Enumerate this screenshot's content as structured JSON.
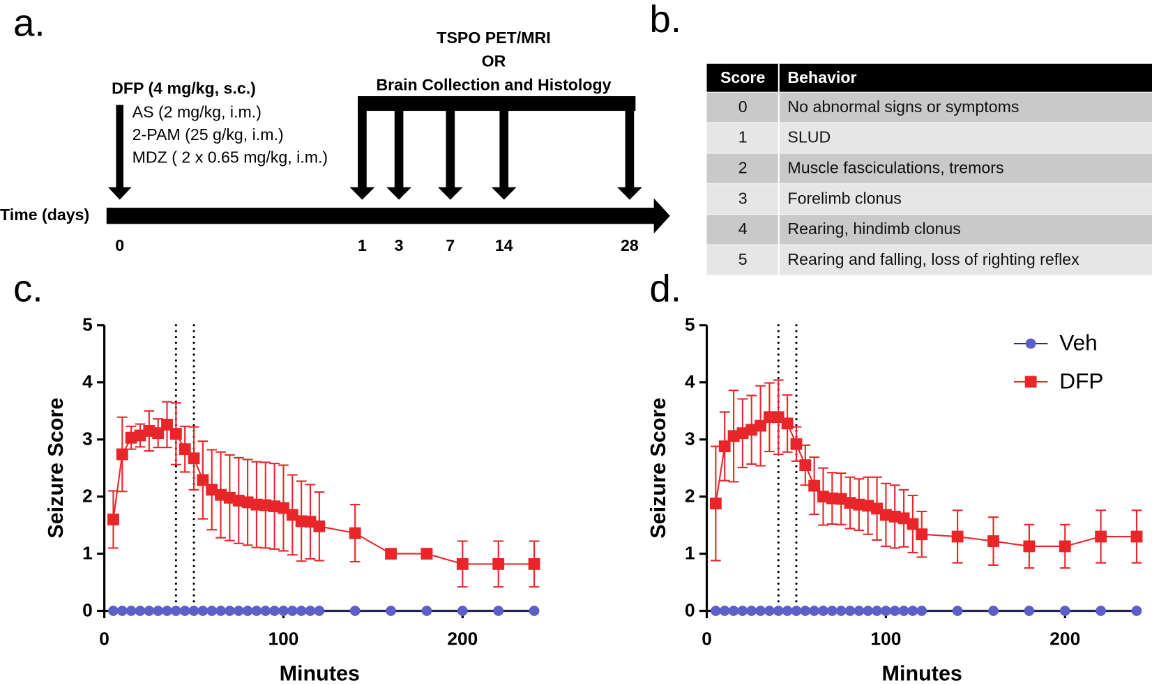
{
  "panel_labels": [
    "a.",
    "b.",
    "c.",
    "d."
  ],
  "timeline": {
    "header_lines": [
      "TSPO PET/MRI",
      "OR",
      "Brain Collection and Histology"
    ],
    "dose_title": "DFP (4 mg/kg, s.c.)",
    "treatments": [
      "AS (2 mg/kg, i.m.)",
      "2-PAM (25 g/kg, i.m.)",
      "MDZ ( 2 x 0.65 mg/kg, i.m.)"
    ],
    "axis_label": "Time (days)",
    "days": [
      0,
      1,
      3,
      7,
      14,
      28
    ]
  },
  "table": {
    "header": [
      "Score",
      "Behavior"
    ],
    "rows": [
      [
        "0",
        "No abnormal signs or symptoms"
      ],
      [
        "1",
        "SLUD"
      ],
      [
        "2",
        "Muscle fasciculations, tremors"
      ],
      [
        "3",
        "Forelimb clonus"
      ],
      [
        "4",
        "Rearing, hindimb clonus"
      ],
      [
        "5",
        "Rearing and falling, loss of righting reflex"
      ]
    ]
  },
  "chart_data": [
    {
      "type": "line",
      "xlabel": "Minutes",
      "ylabel": "Seizure Score",
      "x": [
        5,
        10,
        15,
        20,
        25,
        30,
        35,
        40,
        45,
        50,
        55,
        60,
        65,
        70,
        75,
        80,
        85,
        90,
        95,
        100,
        105,
        110,
        115,
        120,
        140,
        160,
        180,
        200,
        220,
        240
      ],
      "series": [
        {
          "color": "#5b5fc7",
          "marker": "circle",
          "values": [
            0,
            0,
            0,
            0,
            0,
            0,
            0,
            0,
            0,
            0,
            0,
            0,
            0,
            0,
            0,
            0,
            0,
            0,
            0,
            0,
            0,
            0,
            0,
            0,
            0,
            0,
            0,
            0,
            0,
            0
          ]
        },
        {
          "color": "#e8262a",
          "marker": "square",
          "values": [
            1.6,
            2.74,
            3.03,
            3.07,
            3.15,
            3.11,
            3.26,
            3.1,
            2.83,
            2.67,
            2.29,
            2.12,
            2.03,
            1.98,
            1.93,
            1.9,
            1.86,
            1.85,
            1.83,
            1.8,
            1.68,
            1.57,
            1.56,
            1.48,
            1.36,
            1.0,
            1.0,
            0.82,
            0.82,
            0.82
          ],
          "errors": [
            0.5,
            0.65,
            0.2,
            0.2,
            0.35,
            0.25,
            0.4,
            0.54,
            0.4,
            0.55,
            0.68,
            0.7,
            0.75,
            0.75,
            0.75,
            0.75,
            0.75,
            0.75,
            0.75,
            0.75,
            0.7,
            0.7,
            0.65,
            0.6,
            0.5,
            0,
            0,
            0.4,
            0.4,
            0.4
          ]
        }
      ],
      "vlines": [
        40,
        50
      ],
      "xlim": [
        0,
        242
      ],
      "ylim": [
        0,
        5
      ],
      "xticks": [
        0,
        100,
        200
      ],
      "yticks": [
        0,
        1,
        2,
        3,
        4,
        5
      ]
    },
    {
      "type": "line",
      "xlabel": "Minutes",
      "ylabel": "Seizure Score",
      "x": [
        5,
        10,
        15,
        20,
        25,
        30,
        35,
        40,
        45,
        50,
        55,
        60,
        65,
        70,
        75,
        80,
        85,
        90,
        95,
        100,
        105,
        110,
        115,
        120,
        140,
        160,
        180,
        200,
        220,
        240
      ],
      "series": [
        {
          "name": "Veh",
          "color": "#5b5fc7",
          "marker": "circle",
          "values": [
            0,
            0,
            0,
            0,
            0,
            0,
            0,
            0,
            0,
            0,
            0,
            0,
            0,
            0,
            0,
            0,
            0,
            0,
            0,
            0,
            0,
            0,
            0,
            0,
            0,
            0,
            0,
            0,
            0,
            0
          ]
        },
        {
          "name": "DFP",
          "color": "#e8262a",
          "marker": "square",
          "values": [
            1.88,
            2.88,
            3.06,
            3.11,
            3.17,
            3.24,
            3.39,
            3.39,
            3.28,
            2.92,
            2.55,
            2.19,
            2.0,
            1.97,
            1.96,
            1.89,
            1.86,
            1.84,
            1.79,
            1.68,
            1.65,
            1.62,
            1.52,
            1.34,
            1.3,
            1.22,
            1.13,
            1.13,
            1.3,
            1.3
          ],
          "errors": [
            1.0,
            0.6,
            0.8,
            0.6,
            0.6,
            0.7,
            0.6,
            0.65,
            0.5,
            0.3,
            0.35,
            0.5,
            0.5,
            0.45,
            0.45,
            0.45,
            0.45,
            0.5,
            0.55,
            0.55,
            0.55,
            0.5,
            0.5,
            0.4,
            0.46,
            0.42,
            0.38,
            0.38,
            0.46,
            0.46
          ]
        }
      ],
      "vlines": [
        40,
        50
      ],
      "xlim": [
        0,
        242
      ],
      "ylim": [
        0,
        5
      ],
      "xticks": [
        0,
        100,
        200
      ],
      "yticks": [
        0,
        1,
        2,
        3,
        4,
        5
      ],
      "legend": "upper right"
    }
  ]
}
